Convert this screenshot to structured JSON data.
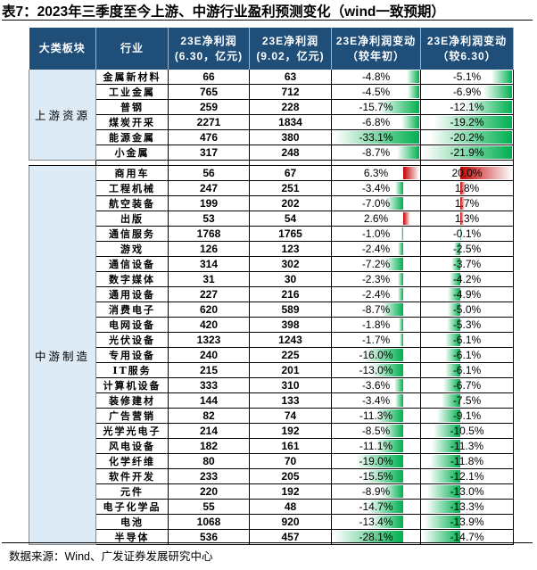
{
  "title": "表7：2023年三季度至今上游、中游行业盈利预测变化（wind一致预期）",
  "source": "数据来源：Wind、广发证券发展研究中心",
  "colors": {
    "header_bg": "#1f4e79",
    "category_bg": "#ddebf7",
    "negative_bar": "#00b050",
    "positive_bar": "#c00000"
  },
  "headers": [
    "大类板块",
    "行业",
    "23E净利润\n(6.30，亿元)",
    "23E净利润\n(9.02，亿元)",
    "23E净利润变动\n（较年初）",
    "23E净利润变动\n（较6.30）"
  ],
  "groups": [
    {
      "name": "上游资源",
      "rows": [
        [
          "金属新材料",
          "66",
          "63",
          "-4.8%",
          "-5.1%"
        ],
        [
          "工业金属",
          "765",
          "712",
          "-4.5%",
          "-6.9%"
        ],
        [
          "普钢",
          "259",
          "228",
          "-15.7%",
          "-12.1%"
        ],
        [
          "煤炭开采",
          "2271",
          "1834",
          "-6.8%",
          "-19.2%"
        ],
        [
          "能源金属",
          "476",
          "380",
          "-33.1%",
          "-20.2%"
        ],
        [
          "小金属",
          "317",
          "248",
          "-8.7%",
          "-21.9%"
        ]
      ]
    },
    {
      "name": "中游制造",
      "rows": [
        [
          "商用车",
          "56",
          "67",
          "6.3%",
          "20.0%"
        ],
        [
          "工程机械",
          "247",
          "251",
          "-3.4%",
          "1.8%"
        ],
        [
          "航空装备",
          "199",
          "202",
          "-7.0%",
          "1.7%"
        ],
        [
          "出版",
          "53",
          "54",
          "2.6%",
          "1.3%"
        ],
        [
          "通信服务",
          "1768",
          "1765",
          "-1.0%",
          "-0.1%"
        ],
        [
          "游戏",
          "126",
          "123",
          "-2.4%",
          "-2.5%"
        ],
        [
          "通信设备",
          "314",
          "302",
          "-7.2%",
          "-3.7%"
        ],
        [
          "数字媒体",
          "31",
          "30",
          "-2.3%",
          "-4.2%"
        ],
        [
          "通用设备",
          "227",
          "216",
          "-2.4%",
          "-4.9%"
        ],
        [
          "消费电子",
          "620",
          "589",
          "-8.7%",
          "-5.0%"
        ],
        [
          "电网设备",
          "420",
          "398",
          "-1.8%",
          "-5.3%"
        ],
        [
          "光伏设备",
          "1323",
          "1243",
          "-1.7%",
          "-6.1%"
        ],
        [
          "专用设备",
          "240",
          "225",
          "-16.0%",
          "-6.1%"
        ],
        [
          "IT服务",
          "215",
          "201",
          "-13.0%",
          "-6.1%"
        ],
        [
          "计算机设备",
          "333",
          "310",
          "-3.6%",
          "-6.7%"
        ],
        [
          "装修建材",
          "144",
          "133",
          "-3.4%",
          "-7.5%"
        ],
        [
          "广告营销",
          "82",
          "74",
          "-11.3%",
          "-9.1%"
        ],
        [
          "光学光电子",
          "214",
          "192",
          "-8.5%",
          "-10.5%"
        ],
        [
          "风电设备",
          "182",
          "161",
          "-11.1%",
          "-11.3%"
        ],
        [
          "化学纤维",
          "80",
          "70",
          "-19.0%",
          "-11.8%"
        ],
        [
          "软件开发",
          "233",
          "205",
          "-15.5%",
          "-12.1%"
        ],
        [
          "元件",
          "220",
          "192",
          "-8.9%",
          "-13.0%"
        ],
        [
          "电子化学品",
          "55",
          "48",
          "-14.7%",
          "-13.3%"
        ],
        [
          "电池",
          "1068",
          "920",
          "-13.4%",
          "-13.9%"
        ],
        [
          "半导体",
          "536",
          "457",
          "-28.1%",
          "-14.7%"
        ]
      ]
    }
  ]
}
